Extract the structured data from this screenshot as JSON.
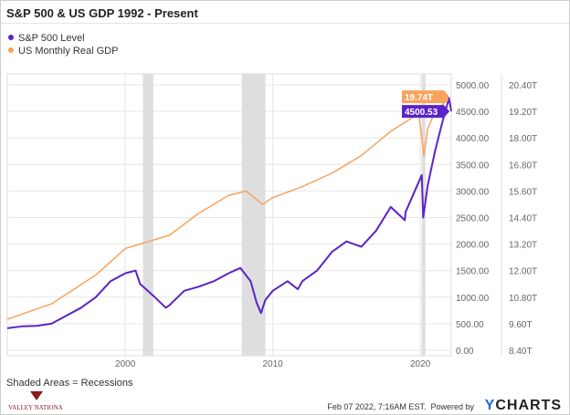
{
  "chart_data": {
    "type": "line",
    "title": "S&P 500 & US GDP 1992 - Present",
    "legend_position": "top-left",
    "series": [
      {
        "name": "S&P 500 Level",
        "color": "#5a24c8",
        "axis": "left",
        "last_label": "4500.53",
        "x": [
          1992,
          1993,
          1994,
          1995,
          1996,
          1997,
          1998,
          1999,
          2000,
          2000.7,
          2001,
          2002,
          2002.75,
          2003,
          2004,
          2005,
          2006,
          2007,
          2007.8,
          2008.5,
          2008.9,
          2009.2,
          2009.5,
          2010,
          2011,
          2011.7,
          2012,
          2013,
          2014,
          2015,
          2016,
          2017,
          2018,
          2018.95,
          2019,
          2020.1,
          2020.2,
          2020.5,
          2021,
          2021.5,
          2021.95,
          2022.1
        ],
        "y": [
          415,
          450,
          460,
          500,
          650,
          800,
          1000,
          1300,
          1450,
          1500,
          1250,
          1000,
          800,
          850,
          1120,
          1200,
          1300,
          1450,
          1550,
          1300,
          900,
          700,
          950,
          1120,
          1300,
          1150,
          1300,
          1500,
          1850,
          2050,
          1950,
          2250,
          2700,
          2450,
          2600,
          3300,
          2500,
          3100,
          3750,
          4300,
          4750,
          4500.53
        ]
      },
      {
        "name": "US Monthly Real GDP",
        "color": "#f7a35c",
        "axis": "right",
        "last_label": "19.74T",
        "x": [
          1992,
          1995,
          1998,
          2000,
          2001,
          2003,
          2005,
          2007,
          2008.2,
          2009.3,
          2010,
          2012,
          2014,
          2016,
          2018,
          2019.9,
          2020.25,
          2020.5,
          2021,
          2021.9
        ],
        "y": [
          9.8,
          10.5,
          11.8,
          13.0,
          13.2,
          13.6,
          14.6,
          15.4,
          15.6,
          15.0,
          15.3,
          15.8,
          16.4,
          17.2,
          18.3,
          19.1,
          17.2,
          18.4,
          19.2,
          19.74
        ]
      }
    ],
    "left_axis": {
      "ticks": [
        "0.00",
        "500.00",
        "1000.00",
        "1500.00",
        "2000.00",
        "2500.00",
        "3000.00",
        "3500.00",
        "4000.00",
        "4500.00",
        "5000.00"
      ],
      "range": [
        0,
        5000
      ]
    },
    "right_axis": {
      "ticks": [
        "8.40T",
        "9.60T",
        "10.80T",
        "12.00T",
        "13.20T",
        "14.40T",
        "15.60T",
        "16.80T",
        "18.00T",
        "19.20T",
        "20.40T"
      ],
      "range": [
        8.4,
        20.4
      ]
    },
    "x_axis": {
      "ticks": [
        "2000",
        "2010",
        "2020"
      ],
      "range": [
        1992,
        2022.1
      ]
    },
    "recessions": [
      [
        2001.2,
        2001.9
      ],
      [
        2007.9,
        2009.5
      ],
      [
        2020.1,
        2020.35
      ]
    ],
    "grid": true
  },
  "note": "Shaded Areas = Recessions",
  "timestamp": "Feb 07 2022, 7:16AM EST.",
  "powered_by": "Powered by",
  "brand": {
    "y": "Y",
    "rest": "CHARTS"
  },
  "logo_text": "VALLEY NATIONAL"
}
